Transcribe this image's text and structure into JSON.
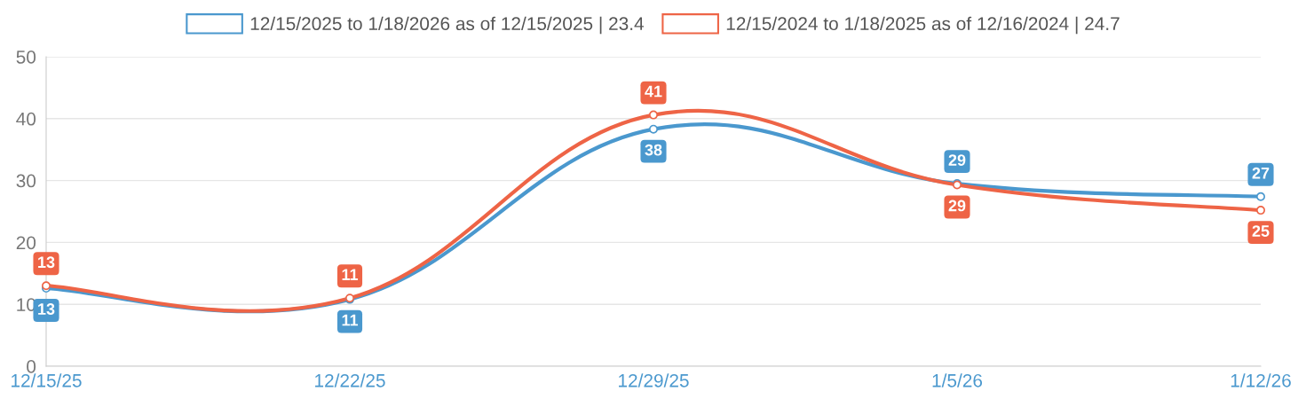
{
  "chart_data": {
    "type": "line",
    "categories": [
      "12/15/25",
      "12/22/25",
      "12/29/25",
      "1/5/26",
      "1/12/26"
    ],
    "series": [
      {
        "name": "12/15/2025 to 1/18/2026 as of 12/15/2025 | 23.4",
        "color": "#4a98ce",
        "values": [
          12.6,
          10.8,
          38.3,
          29.5,
          27.4
        ],
        "value_labels": [
          "13",
          "11",
          "38",
          "29",
          "27"
        ]
      },
      {
        "name": "12/15/2024 to 1/18/2025 as of 12/16/2024 | 24.7",
        "color": "#ee6446",
        "values": [
          13.0,
          11.0,
          40.6,
          29.3,
          25.2
        ],
        "value_labels": [
          "13",
          "11",
          "41",
          "29",
          "25"
        ]
      }
    ],
    "ylim": [
      0,
      50
    ],
    "yticks": [
      0,
      10,
      20,
      30,
      40,
      50
    ],
    "grid": "y",
    "legend": "top",
    "marker": "circle",
    "line_style": "solid"
  }
}
